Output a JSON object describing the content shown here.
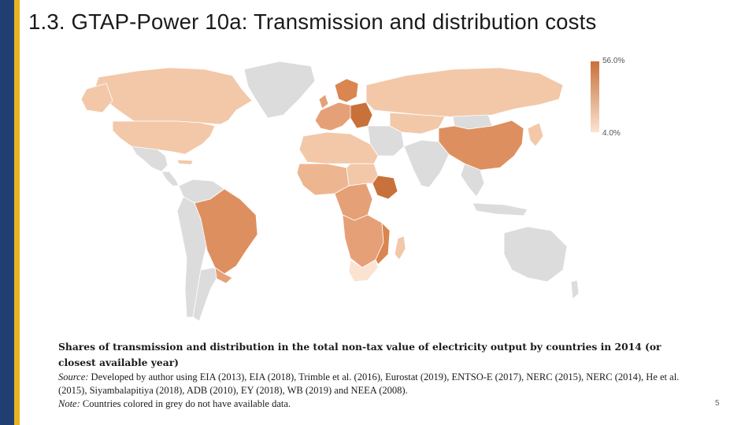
{
  "slide": {
    "title": "1.3. GTAP-Power 10a: Transmission and distribution costs",
    "page_number": "5"
  },
  "legend": {
    "max_label": "56.0%",
    "min_label": "4.0%",
    "color_max": "#c8713a",
    "color_min": "#fbe3d2",
    "no_data_color": "#dcdcdc"
  },
  "caption": {
    "main": "Shares of transmission and distribution in the total non-tax value of electricity output by countries in 2014 (or closest available year)",
    "source_label": "Source:",
    "source_text": "Developed by author using EIA (2013), EIA (2018), Trimble et al. (2016), Eurostat (2019), ENTSO-E (2017), NERC (2015), NERC (2014), He et al. (2015), Siyambalapitiya (2018), ADB (2010), EY (2018), WB (2019) and NEEA (2008).",
    "note_label": "Note:",
    "note_text": "Countries colored in grey do not have available data."
  }
}
